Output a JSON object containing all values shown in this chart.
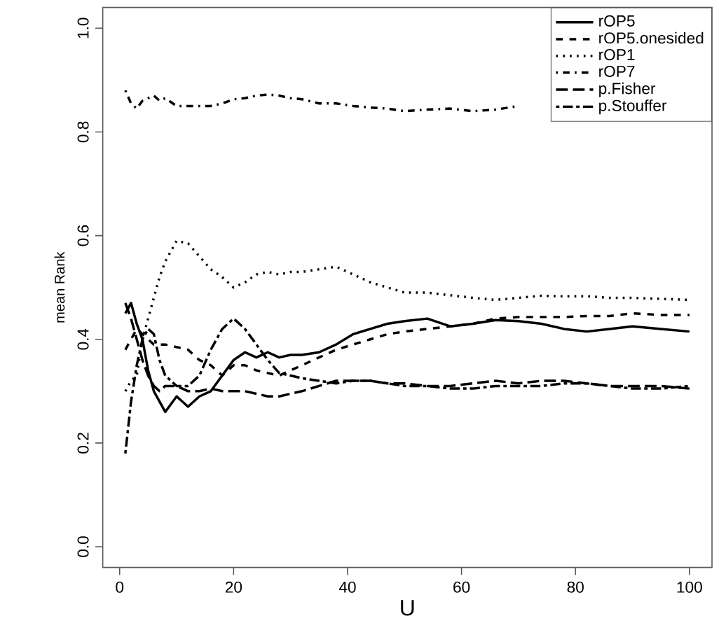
{
  "chart_data": {
    "type": "line",
    "xlabel": "U",
    "ylabel": "mean Rank",
    "x": [
      1,
      2,
      3,
      4,
      5,
      6,
      7,
      8,
      10,
      12,
      14,
      16,
      18,
      20,
      22,
      24,
      26,
      28,
      30,
      32,
      35,
      38,
      41,
      44,
      47,
      50,
      54,
      58,
      62,
      66,
      70,
      74,
      78,
      82,
      86,
      90,
      95,
      100
    ],
    "series": [
      {
        "name": "rOP5",
        "color": "#000000",
        "line_style": "solid",
        "values": [
          0.45,
          0.47,
          0.43,
          0.4,
          0.34,
          0.3,
          0.28,
          0.26,
          0.29,
          0.27,
          0.29,
          0.3,
          0.33,
          0.36,
          0.375,
          0.365,
          0.375,
          0.365,
          0.37,
          0.37,
          0.375,
          0.39,
          0.41,
          0.42,
          0.43,
          0.435,
          0.44,
          0.425,
          0.43,
          0.437,
          0.435,
          0.43,
          0.42,
          0.415,
          0.42,
          0.425,
          0.42,
          0.415
        ]
      },
      {
        "name": "rOP5.onesided",
        "color": "#000000",
        "line_style": "dashed",
        "values": [
          0.38,
          0.4,
          0.42,
          0.41,
          0.4,
          0.39,
          0.39,
          0.39,
          0.385,
          0.38,
          0.36,
          0.35,
          0.33,
          0.35,
          0.35,
          0.34,
          0.335,
          0.33,
          0.34,
          0.35,
          0.365,
          0.38,
          0.39,
          0.4,
          0.41,
          0.415,
          0.42,
          0.425,
          0.43,
          0.44,
          0.443,
          0.443,
          0.443,
          0.445,
          0.445,
          0.45,
          0.447,
          0.447
        ]
      },
      {
        "name": "rOP1",
        "color": "#000000",
        "line_style": "dotted",
        "values": [
          0.3,
          0.32,
          0.33,
          0.4,
          0.44,
          0.48,
          0.52,
          0.55,
          0.59,
          0.585,
          0.56,
          0.535,
          0.52,
          0.5,
          0.51,
          0.525,
          0.53,
          0.525,
          0.53,
          0.53,
          0.535,
          0.54,
          0.525,
          0.51,
          0.5,
          0.49,
          0.49,
          0.485,
          0.48,
          0.476,
          0.48,
          0.484,
          0.483,
          0.483,
          0.48,
          0.48,
          0.478,
          0.476
        ]
      },
      {
        "name": "rOP7",
        "color": "#000000",
        "line_style": "dashdot",
        "values": [
          0.88,
          0.855,
          0.845,
          0.86,
          0.865,
          0.87,
          0.86,
          0.865,
          0.85,
          0.85,
          0.85,
          0.85,
          0.855,
          0.863,
          0.865,
          0.87,
          0.872,
          0.87,
          0.865,
          0.863,
          0.855,
          0.855,
          0.85,
          0.847,
          0.845,
          0.84,
          0.843,
          0.845,
          0.84,
          0.843,
          0.85,
          null,
          null,
          null,
          null,
          null,
          null,
          null
        ]
      },
      {
        "name": "p.Fisher",
        "color": "#000000",
        "line_style": "longdash",
        "values": [
          0.47,
          0.44,
          0.4,
          0.36,
          0.33,
          0.31,
          0.3,
          0.31,
          0.31,
          0.3,
          0.3,
          0.305,
          0.3,
          0.3,
          0.3,
          0.295,
          0.29,
          0.29,
          0.295,
          0.3,
          0.31,
          0.32,
          0.32,
          0.32,
          0.315,
          0.315,
          0.31,
          0.31,
          0.315,
          0.32,
          0.315,
          0.32,
          0.32,
          0.315,
          0.31,
          0.31,
          0.31,
          0.305
        ]
      },
      {
        "name": "p.Stouffer",
        "color": "#000000",
        "line_style": "twodash",
        "values": [
          0.18,
          0.28,
          0.35,
          0.4,
          0.42,
          0.41,
          0.36,
          0.33,
          0.31,
          0.31,
          0.33,
          0.38,
          0.42,
          0.44,
          0.42,
          0.39,
          0.36,
          0.335,
          0.33,
          0.325,
          0.32,
          0.315,
          0.32,
          0.32,
          0.315,
          0.31,
          0.31,
          0.305,
          0.305,
          0.31,
          0.31,
          0.31,
          0.315,
          0.315,
          0.31,
          0.305,
          0.305,
          0.31
        ]
      }
    ],
    "xlim": [
      -2.96,
      103.96
    ],
    "ylim": [
      -0.04,
      1.04
    ],
    "xticks": [
      0,
      20,
      40,
      60,
      80,
      100
    ],
    "yticks": [
      {
        "value": 0,
        "label": "0.0"
      },
      {
        "value": 0.2,
        "label": "0.2"
      },
      {
        "value": 0.4,
        "label": "0.4"
      },
      {
        "value": 0.6,
        "label": "0.6"
      },
      {
        "value": 0.8,
        "label": "0.8"
      },
      {
        "value": 1,
        "label": "1.0"
      }
    ],
    "grid": false,
    "legend": "top right"
  }
}
